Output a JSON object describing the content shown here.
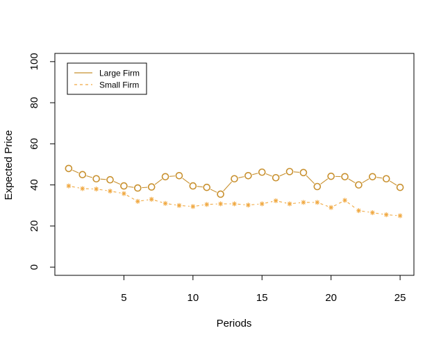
{
  "chart_data": {
    "type": "line",
    "xlabel": "Periods",
    "ylabel": "Expected Price",
    "xlim": [
      0.0,
      26.0
    ],
    "ylim": [
      -4.0,
      104.0
    ],
    "xticks": [
      5,
      10,
      15,
      20,
      25
    ],
    "yticks": [
      0,
      20,
      40,
      60,
      80,
      100
    ],
    "grid": false,
    "legend_position": "top-left",
    "x": [
      1,
      2,
      3,
      4,
      5,
      6,
      7,
      8,
      9,
      10,
      11,
      12,
      13,
      14,
      15,
      16,
      17,
      18,
      19,
      20,
      21,
      22,
      23,
      24,
      25
    ],
    "series": [
      {
        "name": "Large Firm",
        "color": "#c8902e",
        "line_style": "solid",
        "marker": "o",
        "values": [
          48,
          45,
          43,
          42.5,
          39.5,
          38.5,
          39,
          44,
          44.5,
          39.5,
          38.8,
          35.5,
          43,
          44.5,
          46.2,
          43.5,
          46.5,
          46,
          39.2,
          44.2,
          44,
          40,
          44,
          43,
          38.8
        ]
      },
      {
        "name": "Small Firm",
        "color": "#f0a840",
        "line_style": "dashed",
        "marker": "*",
        "values": [
          39.5,
          38.2,
          38,
          37,
          35.8,
          32,
          33,
          31,
          30,
          29.5,
          30.5,
          30.8,
          30.8,
          30.2,
          30.8,
          32.3,
          30.8,
          31.5,
          31.5,
          29,
          32.5,
          27.5,
          26.5,
          25.5,
          25
        ]
      }
    ]
  }
}
